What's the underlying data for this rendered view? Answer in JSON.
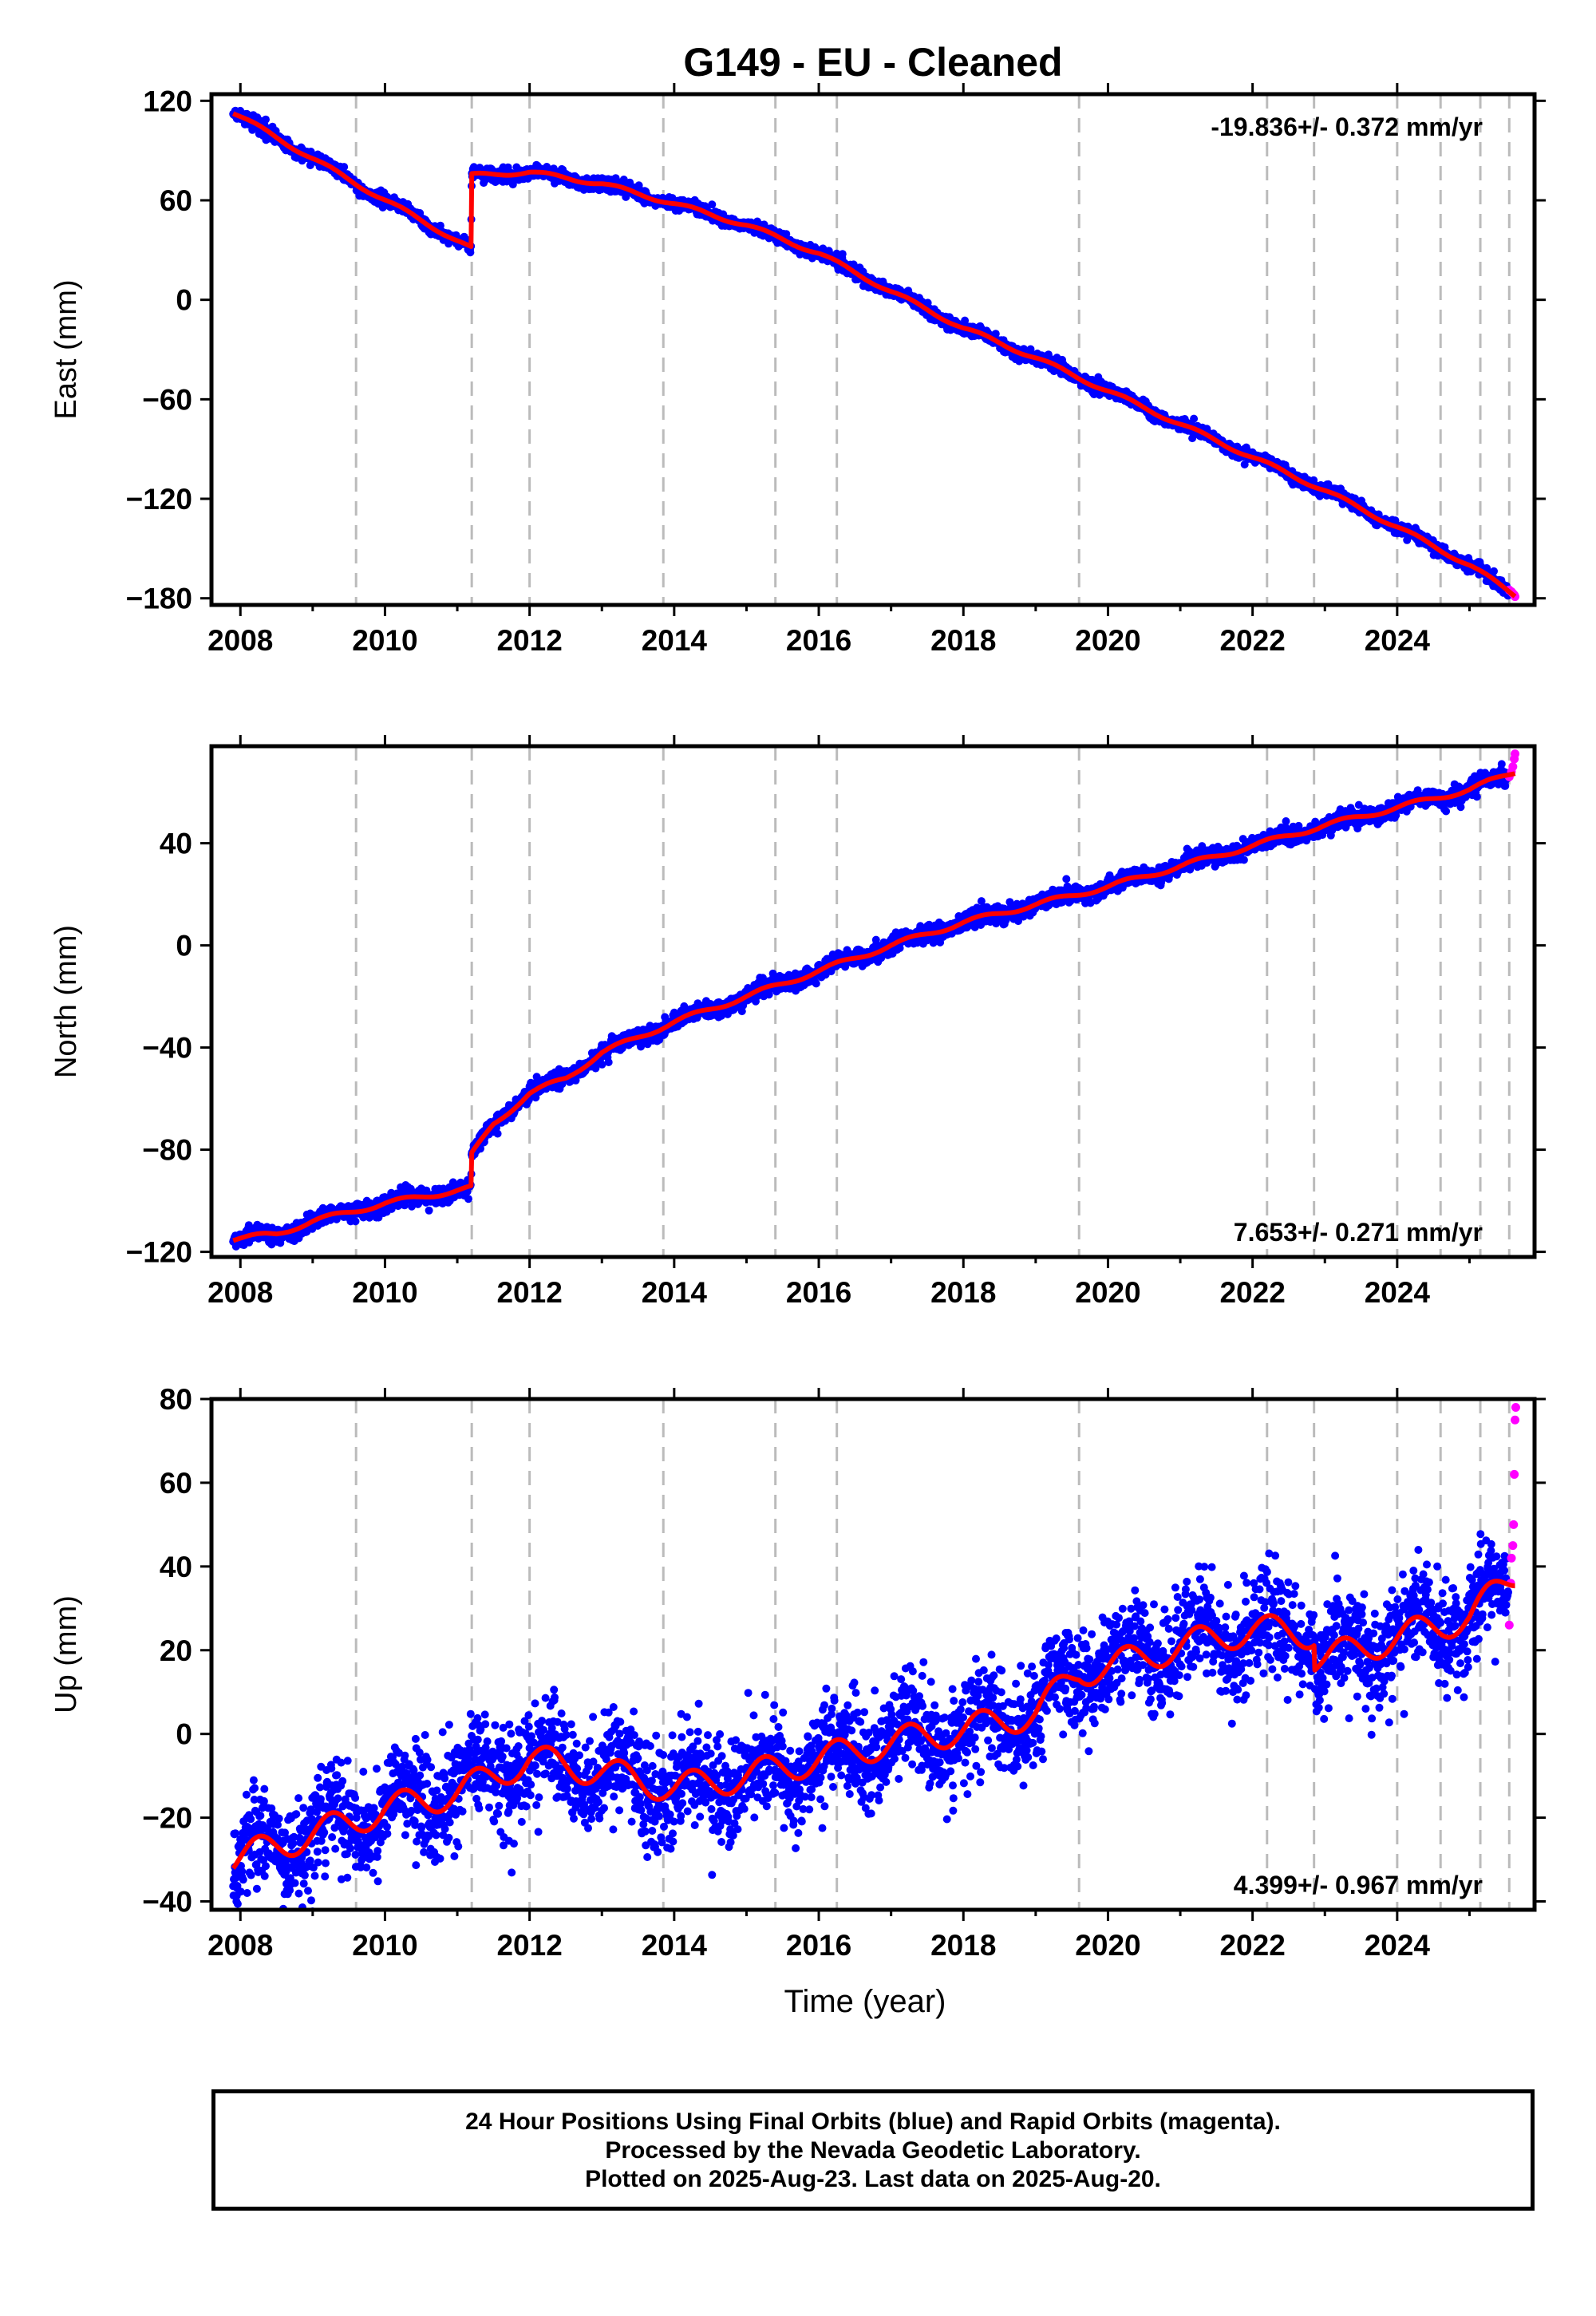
{
  "title": "G149  - EU - Cleaned",
  "colors": {
    "final": "#0000ff",
    "rapid": "#ff00ff",
    "model": "#ff0000",
    "break": "#bbbbbb"
  },
  "chart_data": [
    {
      "type": "scatter",
      "component": "east",
      "ylabel": "East (mm)",
      "xlabel": "",
      "xlim": [
        2007.6,
        2025.9
      ],
      "ylim": [
        -184,
        124
      ],
      "yticks": [
        120,
        60,
        0,
        -60,
        -120,
        -180
      ],
      "xticks": [
        2008,
        2010,
        2012,
        2014,
        2016,
        2018,
        2020,
        2022,
        2024
      ],
      "rate_label": "-19.836+/- 0.372 mm/yr",
      "rate_position": "top-right",
      "offset_epochs": [
        2011.2
      ],
      "seasonal_amplitude": 1.5,
      "noise": 1.8,
      "model_knots": [
        [
          2007.9,
          113
        ],
        [
          2009.6,
          70
        ],
        [
          2011.19,
          31
        ],
        [
          2011.2,
          75
        ],
        [
          2012.0,
          77
        ],
        [
          2013.0,
          70
        ],
        [
          2014.0,
          58
        ],
        [
          2015.0,
          45
        ],
        [
          2016.0,
          28
        ],
        [
          2017.0,
          5
        ],
        [
          2018.0,
          -17
        ],
        [
          2019.0,
          -35
        ],
        [
          2020.0,
          -55
        ],
        [
          2021.0,
          -75
        ],
        [
          2022.0,
          -95
        ],
        [
          2023.0,
          -115
        ],
        [
          2024.0,
          -137
        ],
        [
          2025.0,
          -160
        ],
        [
          2025.63,
          -178
        ]
      ],
      "rapid_points": [
        [
          2025.55,
          -175
        ],
        [
          2025.58,
          -176
        ],
        [
          2025.6,
          -177
        ],
        [
          2025.62,
          -178
        ],
        [
          2025.63,
          -179
        ]
      ]
    },
    {
      "type": "scatter",
      "component": "north",
      "ylabel": "North (mm)",
      "xlabel": "",
      "xlim": [
        2007.6,
        2025.9
      ],
      "ylim": [
        -122,
        78
      ],
      "yticks": [
        40,
        0,
        -40,
        -80,
        -120
      ],
      "xticks": [
        2008,
        2010,
        2012,
        2014,
        2016,
        2018,
        2020,
        2022,
        2024
      ],
      "rate_label": "7.653+/- 0.271 mm/yr",
      "rate_position": "bottom-right",
      "offset_epochs": [
        2011.2
      ],
      "seasonal_amplitude": 1.2,
      "noise": 1.6,
      "model_knots": [
        [
          2007.9,
          -115
        ],
        [
          2008.5,
          -113
        ],
        [
          2009.0,
          -108
        ],
        [
          2010.0,
          -101
        ],
        [
          2011.19,
          -95
        ],
        [
          2011.2,
          -82
        ],
        [
          2011.5,
          -70
        ],
        [
          2012.0,
          -58
        ],
        [
          2012.5,
          -52
        ],
        [
          2013.0,
          -42
        ],
        [
          2014.0,
          -30
        ],
        [
          2015.0,
          -20
        ],
        [
          2016.0,
          -10
        ],
        [
          2017.0,
          0
        ],
        [
          2018.0,
          9
        ],
        [
          2019.0,
          16
        ],
        [
          2020.0,
          23
        ],
        [
          2021.0,
          31
        ],
        [
          2022.0,
          39
        ],
        [
          2023.0,
          47
        ],
        [
          2024.0,
          54
        ],
        [
          2025.0,
          61
        ],
        [
          2025.63,
          68
        ]
      ],
      "rapid_points": [
        [
          2025.55,
          66
        ],
        [
          2025.58,
          68
        ],
        [
          2025.6,
          70
        ],
        [
          2025.62,
          73
        ],
        [
          2025.63,
          75
        ]
      ]
    },
    {
      "type": "scatter",
      "component": "up",
      "ylabel": "Up (mm)",
      "xlabel": "Time (year)",
      "xlim": [
        2007.6,
        2025.9
      ],
      "ylim": [
        -42,
        80
      ],
      "yticks": [
        80,
        60,
        40,
        20,
        0,
        -20,
        -40
      ],
      "xticks": [
        2008,
        2010,
        2012,
        2014,
        2016,
        2018,
        2020,
        2022,
        2024
      ],
      "rate_label": "4.399+/- 0.967 mm/yr",
      "rate_position": "bottom-right",
      "offset_epochs": [
        2011.2,
        2012.75,
        2013.95,
        2019.6,
        2022.85
      ],
      "seasonal_amplitude": 4.5,
      "noise": 6.0,
      "model_knots": [
        [
          2007.9,
          -30
        ],
        [
          2009.0,
          -24
        ],
        [
          2010.0,
          -18
        ],
        [
          2011.0,
          -14
        ],
        [
          2012.0,
          -6
        ],
        [
          2013.0,
          -9
        ],
        [
          2014.0,
          -13
        ],
        [
          2015.0,
          -10
        ],
        [
          2016.0,
          -6
        ],
        [
          2017.0,
          -2
        ],
        [
          2018.0,
          1
        ],
        [
          2019.0,
          5
        ],
        [
          2019.6,
          15
        ],
        [
          2020.0,
          16
        ],
        [
          2021.0,
          21
        ],
        [
          2022.0,
          25
        ],
        [
          2022.85,
          24
        ],
        [
          2022.86,
          18
        ],
        [
          2023.0,
          18
        ],
        [
          2024.0,
          23
        ],
        [
          2025.0,
          28
        ],
        [
          2025.63,
          38
        ]
      ],
      "rapid_points": [
        [
          2025.55,
          26
        ],
        [
          2025.57,
          36
        ],
        [
          2025.58,
          42
        ],
        [
          2025.6,
          45
        ],
        [
          2025.61,
          50
        ],
        [
          2025.62,
          62
        ],
        [
          2025.63,
          75
        ],
        [
          2025.64,
          78
        ]
      ]
    }
  ],
  "equipment_change_epochs": [
    2009.6,
    2011.2,
    2012.0,
    2013.85,
    2015.4,
    2016.25,
    2019.6,
    2022.2,
    2022.85,
    2024.0,
    2024.6,
    2025.15,
    2025.55
  ],
  "footer": {
    "line1": "24 Hour Positions Using Final Orbits (blue) and Rapid Orbits (magenta).",
    "line2": "Processed by the Nevada Geodetic Laboratory.",
    "line3": "Plotted on 2025-Aug-23. Last data on 2025-Aug-20."
  }
}
